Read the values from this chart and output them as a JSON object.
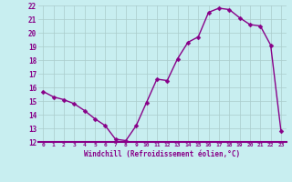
{
  "x": [
    0,
    1,
    2,
    3,
    4,
    5,
    6,
    7,
    8,
    9,
    10,
    11,
    12,
    13,
    14,
    15,
    16,
    17,
    18,
    19,
    20,
    21,
    22,
    23
  ],
  "y": [
    15.7,
    15.3,
    15.1,
    14.8,
    14.3,
    13.7,
    13.2,
    12.2,
    12.1,
    13.2,
    14.9,
    16.6,
    16.5,
    18.1,
    19.3,
    19.7,
    21.5,
    21.8,
    21.7,
    21.1,
    20.6,
    20.5,
    19.1,
    12.8
  ],
  "line_color": "#880088",
  "marker_color": "#880088",
  "bg_color": "#c8eef0",
  "grid_color": "#aacccc",
  "xlabel": "Windchill (Refroidissement éolien,°C)",
  "ylabel": "",
  "xlim": [
    -0.5,
    23.5
  ],
  "ylim": [
    12,
    22
  ],
  "yticks": [
    12,
    13,
    14,
    15,
    16,
    17,
    18,
    19,
    20,
    21,
    22
  ],
  "xticks": [
    0,
    1,
    2,
    3,
    4,
    5,
    6,
    7,
    8,
    9,
    10,
    11,
    12,
    13,
    14,
    15,
    16,
    17,
    18,
    19,
    20,
    21,
    22,
    23
  ],
  "axis_label_color": "#880088",
  "tick_label_color": "#880088",
  "marker_size": 2.5,
  "line_width": 1.0,
  "bottom_line_color": "#880088"
}
